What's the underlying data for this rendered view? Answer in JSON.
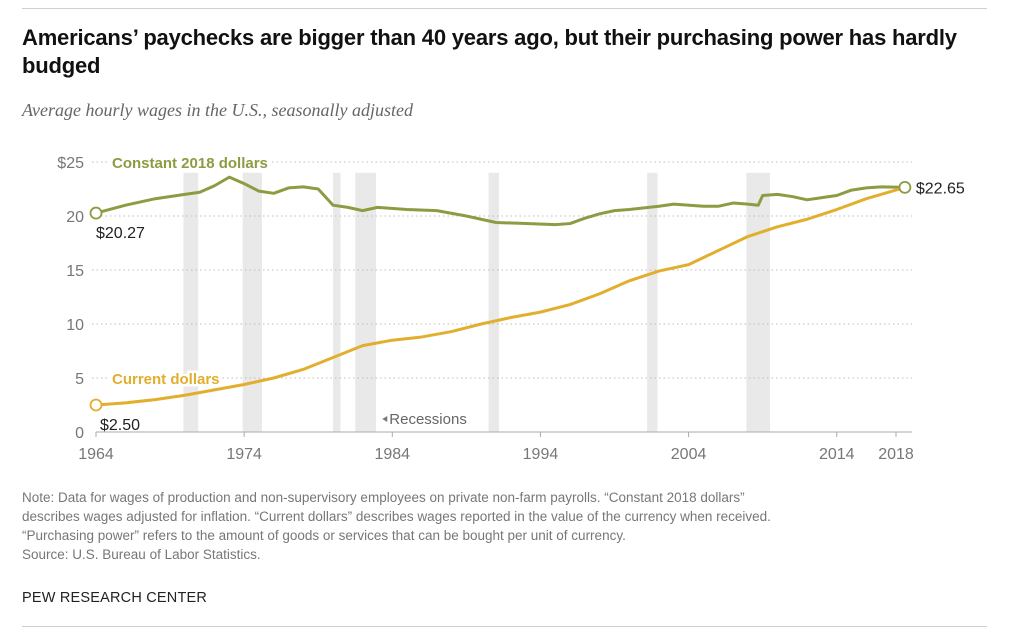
{
  "title": "Americans’ paychecks are bigger than 40 years ago, but their purchasing power has hardly budged",
  "subtitle": "Average hourly wages in the U.S., seasonally adjusted",
  "notes": [
    "Note: Data for wages of production and non-supervisory employees on private non-farm payrolls. “Constant 2018 dollars”",
    "describes wages adjusted for inflation. “Current dollars” describes wages reported in the value of the currency when received.",
    "“Purchasing power” refers to the amount of goods or services that can be bought per unit of currency.",
    "Source: U.S. Bureau of Labor Statistics."
  ],
  "brand": "PEW RESEARCH CENTER",
  "colors": {
    "constant": "#8c9c42",
    "current": "#e2ae2e",
    "recession": "#e9e9e9",
    "grid": "#bdbdbd",
    "axis_text": "#777777"
  },
  "chart_data": {
    "type": "line",
    "title": "Americans’ paychecks are bigger than 40 years ago, but their purchasing power has hardly budged",
    "subtitle": "Average hourly wages in the U.S., seasonally adjusted",
    "xlim": [
      1964,
      2018.6
    ],
    "ylim": [
      0,
      25
    ],
    "x_ticks": [
      1964,
      1974,
      1984,
      1994,
      2004,
      2014,
      2018
    ],
    "y_ticks": [
      {
        "v": 0,
        "label": "0"
      },
      {
        "v": 5,
        "label": "5"
      },
      {
        "v": 10,
        "label": "10"
      },
      {
        "v": 15,
        "label": "15"
      },
      {
        "v": 20,
        "label": "20"
      },
      {
        "v": 25,
        "label": "$25"
      }
    ],
    "grid": "horizontal dotted",
    "recessions": [
      [
        1969.9,
        1970.9
      ],
      [
        1973.9,
        1975.2
      ],
      [
        1980.0,
        1980.5
      ],
      [
        1981.5,
        1982.9
      ],
      [
        1990.5,
        1991.2
      ],
      [
        2001.2,
        2001.9
      ],
      [
        2007.9,
        2009.5
      ]
    ],
    "recession_label": "Recessions",
    "series": [
      {
        "name": "Constant 2018 dollars",
        "start_label": "$20.27",
        "end_label": "$22.65",
        "points": [
          [
            1964,
            20.27
          ],
          [
            1966,
            21.0
          ],
          [
            1968,
            21.6
          ],
          [
            1970,
            22.0
          ],
          [
            1971,
            22.2
          ],
          [
            1972,
            22.8
          ],
          [
            1973,
            23.6
          ],
          [
            1974,
            23.0
          ],
          [
            1975,
            22.3
          ],
          [
            1976,
            22.1
          ],
          [
            1977,
            22.6
          ],
          [
            1978,
            22.7
          ],
          [
            1979,
            22.5
          ],
          [
            1980,
            21.0
          ],
          [
            1981,
            20.8
          ],
          [
            1982,
            20.5
          ],
          [
            1983,
            20.8
          ],
          [
            1985,
            20.6
          ],
          [
            1987,
            20.5
          ],
          [
            1989,
            20.0
          ],
          [
            1991,
            19.4
          ],
          [
            1993,
            19.3
          ],
          [
            1995,
            19.2
          ],
          [
            1996,
            19.3
          ],
          [
            1997,
            19.8
          ],
          [
            1998,
            20.2
          ],
          [
            1999,
            20.5
          ],
          [
            2000,
            20.6
          ],
          [
            2002,
            20.9
          ],
          [
            2003,
            21.1
          ],
          [
            2005,
            20.9
          ],
          [
            2006,
            20.9
          ],
          [
            2007,
            21.2
          ],
          [
            2008,
            21.1
          ],
          [
            2008.7,
            21.0
          ],
          [
            2009,
            21.9
          ],
          [
            2010,
            22.0
          ],
          [
            2011,
            21.8
          ],
          [
            2012,
            21.5
          ],
          [
            2013,
            21.7
          ],
          [
            2014,
            21.9
          ],
          [
            2015,
            22.4
          ],
          [
            2016,
            22.6
          ],
          [
            2017,
            22.7
          ],
          [
            2018.6,
            22.65
          ]
        ]
      },
      {
        "name": "Current dollars",
        "start_label": "$2.50",
        "points": [
          [
            1964,
            2.5
          ],
          [
            1966,
            2.7
          ],
          [
            1968,
            3.0
          ],
          [
            1970,
            3.4
          ],
          [
            1972,
            3.9
          ],
          [
            1974,
            4.4
          ],
          [
            1976,
            5.0
          ],
          [
            1978,
            5.8
          ],
          [
            1980,
            6.9
          ],
          [
            1982,
            8.0
          ],
          [
            1984,
            8.5
          ],
          [
            1986,
            8.8
          ],
          [
            1988,
            9.3
          ],
          [
            1990,
            10.0
          ],
          [
            1992,
            10.6
          ],
          [
            1994,
            11.1
          ],
          [
            1996,
            11.8
          ],
          [
            1998,
            12.8
          ],
          [
            2000,
            14.0
          ],
          [
            2002,
            14.9
          ],
          [
            2004,
            15.5
          ],
          [
            2006,
            16.8
          ],
          [
            2008,
            18.1
          ],
          [
            2010,
            19.0
          ],
          [
            2012,
            19.7
          ],
          [
            2014,
            20.6
          ],
          [
            2016,
            21.6
          ],
          [
            2018.6,
            22.65
          ]
        ]
      }
    ]
  }
}
